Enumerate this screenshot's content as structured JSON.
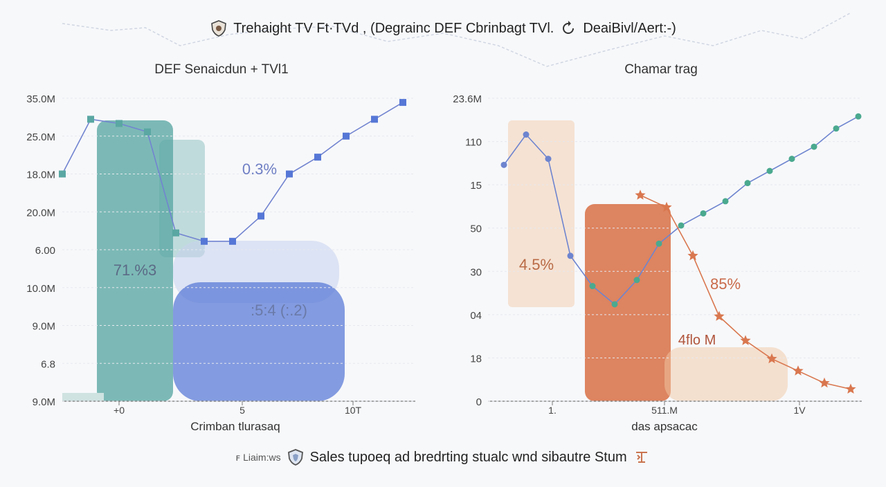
{
  "header": {
    "title_left": "Trehaight TV Ft·TVd , (Degrainc DEF Cbrinbagt TVl.",
    "title_right": "DeaiBivl/Aert:-)"
  },
  "footer": {
    "label_left": "ꜰ Liaim:ws",
    "caption": "Sales tupoeq ad bredrting stualc wnd sibautre Stum"
  },
  "chart_data": [
    {
      "type": "line",
      "title": "DEF Senaicdun + TVl1",
      "xlabel": "Crimban tlurasaq",
      "ylabel": "",
      "yticks": [
        "35.0M",
        "25.0M",
        "18.0M",
        "20.0M",
        "6.00",
        "10.0M",
        "9.0M",
        "6.8",
        "9.0M"
      ],
      "xticks": [
        "+0",
        "5",
        "10T"
      ],
      "annotations": [
        "0.3%",
        "71.%3",
        ":5:4 (:.2)"
      ],
      "series": [
        {
          "values": [
            27,
            33.5,
            33,
            32,
            20,
            19,
            19,
            22,
            27,
            29,
            31.5,
            33.5,
            35.5
          ]
        }
      ],
      "colors": {
        "teal": "#5aa7a3",
        "blue": "#5677d6",
        "line": "#7284d0"
      }
    },
    {
      "type": "line",
      "title": "Chamar trag",
      "xlabel": "das apsacac",
      "ylabel": "",
      "yticks": [
        "23.6M",
        "110",
        "15",
        "50",
        "30",
        "04",
        "18",
        "0"
      ],
      "xticks": [
        "1.",
        "511.M",
        "1V"
      ],
      "annotations": [
        "4.5%",
        "85%",
        "4flo M"
      ],
      "series": [
        {
          "values": [
            19.5,
            22,
            20,
            12,
            9.5,
            8,
            10,
            13,
            14.5,
            15.5,
            16.5,
            18,
            19,
            20,
            21,
            22.5,
            23.5
          ]
        },
        {
          "values": [
            17,
            16,
            12,
            7,
            5,
            3.5,
            2.5,
            1.5,
            1
          ]
        }
      ],
      "colors": {
        "orange": "#d9774f",
        "peach": "#f1c8a3",
        "line": "#6d84cf",
        "green": "#4aa98f"
      }
    }
  ]
}
